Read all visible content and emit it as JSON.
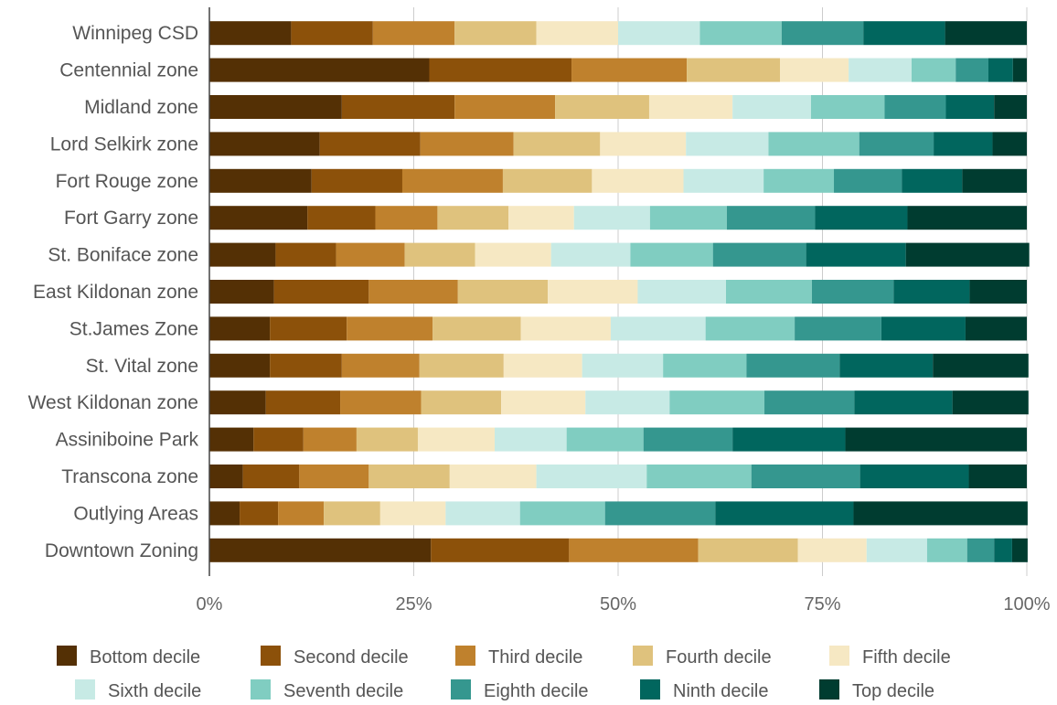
{
  "chart_data": {
    "type": "bar",
    "orientation": "horizontal",
    "stacked": "percent",
    "title": "",
    "xlabel": "",
    "ylabel": "",
    "xlim": [
      0,
      100
    ],
    "x_ticks": [
      "0%",
      "25%",
      "50%",
      "75%",
      "100%"
    ],
    "grid": true,
    "legend_position": "bottom",
    "categories": [
      "Winnipeg CSD",
      "Centennial zone",
      "Midland zone",
      "Lord Selkirk zone",
      "Fort Rouge zone",
      "Fort Garry zone",
      "St. Boniface zone",
      "East Kildonan zone",
      "St.James Zone",
      "St. Vital zone",
      "West Kildonan zone",
      "Assiniboine Park",
      "Transcona zone",
      "Outlying Areas",
      "Downtown Zoning"
    ],
    "series": [
      {
        "name": "Bottom decile",
        "color": "#543005",
        "values": [
          10.0,
          26.9,
          16.2,
          13.5,
          12.5,
          12.0,
          8.1,
          7.9,
          7.4,
          7.4,
          6.9,
          5.4,
          4.1,
          3.7,
          27.1
        ]
      },
      {
        "name": "Second decile",
        "color": "#8c510a",
        "values": [
          10.0,
          17.4,
          13.8,
          12.3,
          11.1,
          8.3,
          7.4,
          11.6,
          9.4,
          8.8,
          9.1,
          6.1,
          6.9,
          4.7,
          16.9
        ]
      },
      {
        "name": "Third decile",
        "color": "#bf812d",
        "values": [
          10.0,
          14.1,
          12.3,
          11.4,
          12.3,
          7.6,
          8.4,
          10.9,
          10.5,
          9.5,
          9.9,
          6.5,
          8.5,
          5.6,
          15.8
        ]
      },
      {
        "name": "Fourth decile",
        "color": "#dfc27d",
        "values": [
          10.0,
          11.4,
          11.5,
          10.6,
          10.9,
          8.7,
          8.6,
          11.0,
          10.8,
          10.3,
          9.8,
          7.5,
          9.9,
          6.9,
          12.2
        ]
      },
      {
        "name": "Fifth decile",
        "color": "#f6e8c3",
        "values": [
          10.0,
          8.4,
          10.2,
          10.5,
          11.2,
          8.0,
          9.3,
          11.0,
          11.0,
          9.6,
          10.3,
          9.4,
          10.6,
          8.0,
          8.4
        ]
      },
      {
        "name": "Sixth decile",
        "color": "#c7eae5",
        "values": [
          10.0,
          7.7,
          9.6,
          10.1,
          9.8,
          9.3,
          9.7,
          10.8,
          11.6,
          9.9,
          10.3,
          8.8,
          13.5,
          9.1,
          7.4
        ]
      },
      {
        "name": "Seventh decile",
        "color": "#80cdc1",
        "values": [
          10.0,
          5.4,
          9.0,
          11.1,
          8.6,
          9.4,
          10.1,
          10.5,
          10.9,
          10.2,
          11.6,
          9.4,
          12.8,
          10.4,
          4.9
        ]
      },
      {
        "name": "Eighth decile",
        "color": "#35978f",
        "values": [
          10.0,
          4.0,
          7.5,
          9.1,
          8.3,
          10.8,
          11.4,
          10.0,
          10.6,
          11.4,
          11.0,
          10.9,
          13.3,
          13.5,
          3.3
        ]
      },
      {
        "name": "Ninth decile",
        "color": "#01665e",
        "values": [
          10.0,
          3.0,
          5.9,
          7.2,
          7.4,
          11.3,
          12.2,
          9.3,
          10.3,
          11.4,
          12.0,
          13.8,
          13.3,
          16.9,
          2.2
        ]
      },
      {
        "name": "Top decile",
        "color": "#003c30",
        "values": [
          10.0,
          1.7,
          4.0,
          4.2,
          7.9,
          14.6,
          15.1,
          7.0,
          7.5,
          11.7,
          9.3,
          22.2,
          7.1,
          21.3,
          1.9
        ]
      }
    ]
  }
}
